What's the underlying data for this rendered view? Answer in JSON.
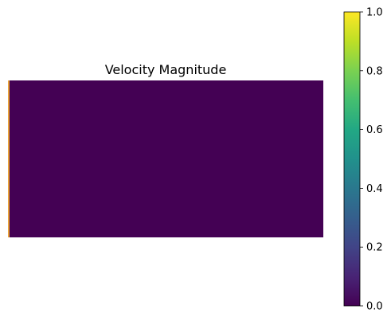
{
  "chart_data": {
    "type": "heatmap",
    "title": "Velocity Magnitude",
    "xlabel": "",
    "ylabel": "",
    "axes_visible": false,
    "colormap": "viridis",
    "vmin": 0.0,
    "vmax": 1.0,
    "colorbar": {
      "orientation": "vertical",
      "placement": "right",
      "ticks": [
        0.0,
        0.2,
        0.4,
        0.6,
        0.8,
        1.0
      ],
      "tick_labels": [
        "0.0",
        "0.2",
        "0.4",
        "0.6",
        "0.8",
        "1.0"
      ]
    },
    "field": {
      "description_values": "uniform field at 0.0 except a thin inlet column at the left edge near 1.0",
      "background_value": 0.0,
      "inlet_value": 0.85,
      "inlet_column_fraction": 0.006
    },
    "colors": {
      "low": "#440154",
      "high": "#fde725",
      "inlet": "#e8a23a"
    }
  }
}
